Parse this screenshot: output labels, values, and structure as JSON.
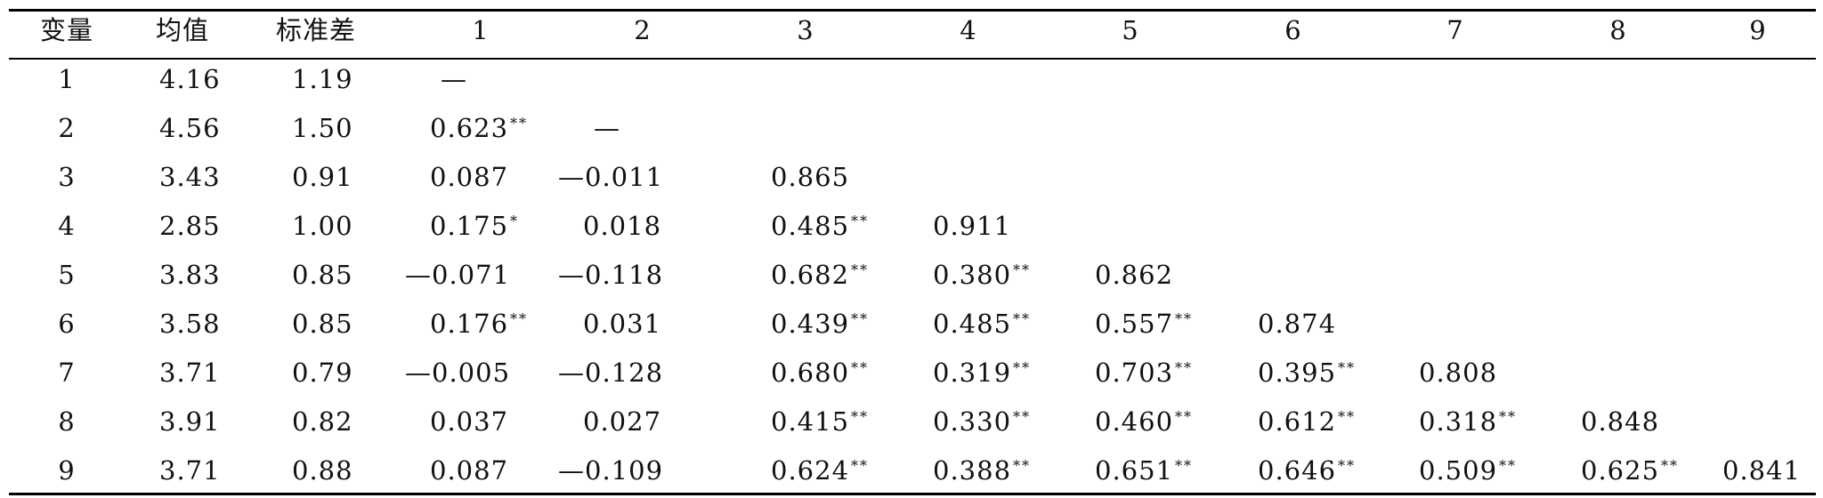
{
  "table": {
    "headers": [
      "变量",
      "均值",
      "标准差",
      "1",
      "2",
      "3",
      "4",
      "5",
      "6",
      "7",
      "8",
      "9"
    ],
    "rows": [
      {
        "var": "1",
        "mean": "4.16",
        "sd": "1.19",
        "cells": [
          {
            "v": "—",
            "s": ""
          }
        ]
      },
      {
        "var": "2",
        "mean": "4.56",
        "sd": "1.50",
        "cells": [
          {
            "v": "0.623",
            "s": "**"
          },
          {
            "v": "—",
            "s": ""
          }
        ]
      },
      {
        "var": "3",
        "mean": "3.43",
        "sd": "0.91",
        "cells": [
          {
            "v": "0.087",
            "s": ""
          },
          {
            "v": "—0.011",
            "s": ""
          },
          {
            "v": "0.865",
            "s": ""
          }
        ]
      },
      {
        "var": "4",
        "mean": "2.85",
        "sd": "1.00",
        "cells": [
          {
            "v": "0.175",
            "s": "*"
          },
          {
            "v": "0.018",
            "s": ""
          },
          {
            "v": "0.485",
            "s": "**"
          },
          {
            "v": "0.911",
            "s": ""
          }
        ]
      },
      {
        "var": "5",
        "mean": "3.83",
        "sd": "0.85",
        "cells": [
          {
            "v": "—0.071",
            "s": ""
          },
          {
            "v": "—0.118",
            "s": ""
          },
          {
            "v": "0.682",
            "s": "**"
          },
          {
            "v": "0.380",
            "s": "**"
          },
          {
            "v": "0.862",
            "s": ""
          }
        ]
      },
      {
        "var": "6",
        "mean": "3.58",
        "sd": "0.85",
        "cells": [
          {
            "v": "0.176",
            "s": "**"
          },
          {
            "v": "0.031",
            "s": ""
          },
          {
            "v": "0.439",
            "s": "**"
          },
          {
            "v": "0.485",
            "s": "**"
          },
          {
            "v": "0.557",
            "s": "**"
          },
          {
            "v": "0.874",
            "s": ""
          }
        ]
      },
      {
        "var": "7",
        "mean": "3.71",
        "sd": "0.79",
        "cells": [
          {
            "v": "—0.005",
            "s": ""
          },
          {
            "v": "—0.128",
            "s": ""
          },
          {
            "v": "0.680",
            "s": "**"
          },
          {
            "v": "0.319",
            "s": "**"
          },
          {
            "v": "0.703",
            "s": "**"
          },
          {
            "v": "0.395",
            "s": "**"
          },
          {
            "v": "0.808",
            "s": ""
          }
        ]
      },
      {
        "var": "8",
        "mean": "3.91",
        "sd": "0.82",
        "cells": [
          {
            "v": "0.037",
            "s": ""
          },
          {
            "v": "0.027",
            "s": ""
          },
          {
            "v": "0.415",
            "s": "**"
          },
          {
            "v": "0.330",
            "s": "**"
          },
          {
            "v": "0.460",
            "s": "**"
          },
          {
            "v": "0.612",
            "s": "**"
          },
          {
            "v": "0.318",
            "s": "**"
          },
          {
            "v": "0.848",
            "s": ""
          }
        ]
      },
      {
        "var": "9",
        "mean": "3.71",
        "sd": "0.88",
        "cells": [
          {
            "v": "0.087",
            "s": ""
          },
          {
            "v": "—0.109",
            "s": ""
          },
          {
            "v": "0.624",
            "s": "**"
          },
          {
            "v": "0.388",
            "s": "**"
          },
          {
            "v": "0.651",
            "s": "**"
          },
          {
            "v": "0.646",
            "s": "**"
          },
          {
            "v": "0.509",
            "s": "**"
          },
          {
            "v": "0.625",
            "s": "**"
          },
          {
            "v": "0.841",
            "s": ""
          }
        ]
      }
    ]
  }
}
